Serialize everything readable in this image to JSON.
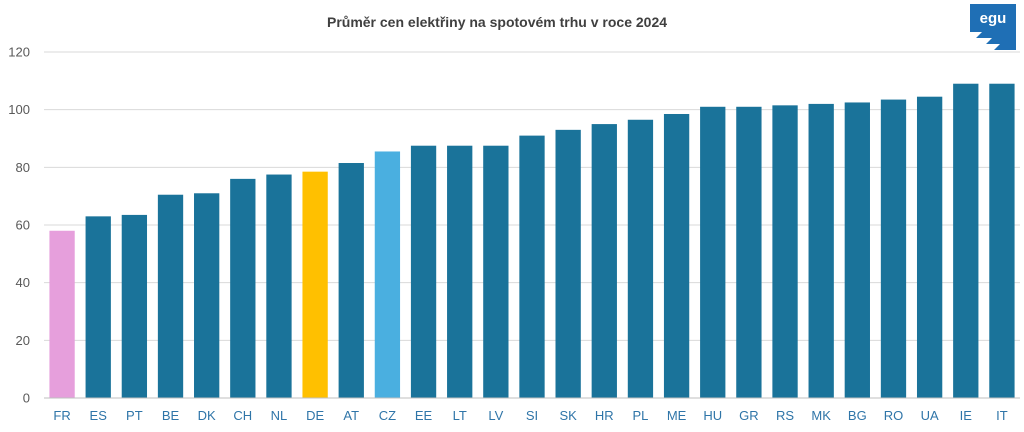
{
  "logo": {
    "text": "egu",
    "color": "#1f6fb5"
  },
  "chart_data": {
    "type": "bar",
    "title": "Průměr cen elektřiny na spotovém trhu v roce 2024",
    "xlabel": "",
    "ylabel": "",
    "ylim": [
      0,
      120
    ],
    "yticks": [
      0,
      20,
      40,
      60,
      80,
      100,
      120
    ],
    "grid": true,
    "legend": "none",
    "categories": [
      "FR",
      "ES",
      "PT",
      "BE",
      "DK",
      "CH",
      "NL",
      "DE",
      "AT",
      "CZ",
      "EE",
      "LT",
      "LV",
      "SI",
      "SK",
      "HR",
      "PL",
      "ME",
      "HU",
      "GR",
      "RS",
      "MK",
      "BG",
      "RO",
      "UA",
      "IE",
      "IT"
    ],
    "values": [
      58,
      63,
      63.5,
      70.5,
      71,
      76,
      77.5,
      78.5,
      81.5,
      85.5,
      87.5,
      87.5,
      87.5,
      91,
      93,
      95,
      96.5,
      98.5,
      101,
      101,
      101.5,
      102,
      102.5,
      103.5,
      104.5,
      109,
      109
    ],
    "colors": {
      "default": "#1a739a",
      "FR": "#e69fdc",
      "DE": "#ffc000",
      "CZ": "#4aafe0"
    }
  }
}
